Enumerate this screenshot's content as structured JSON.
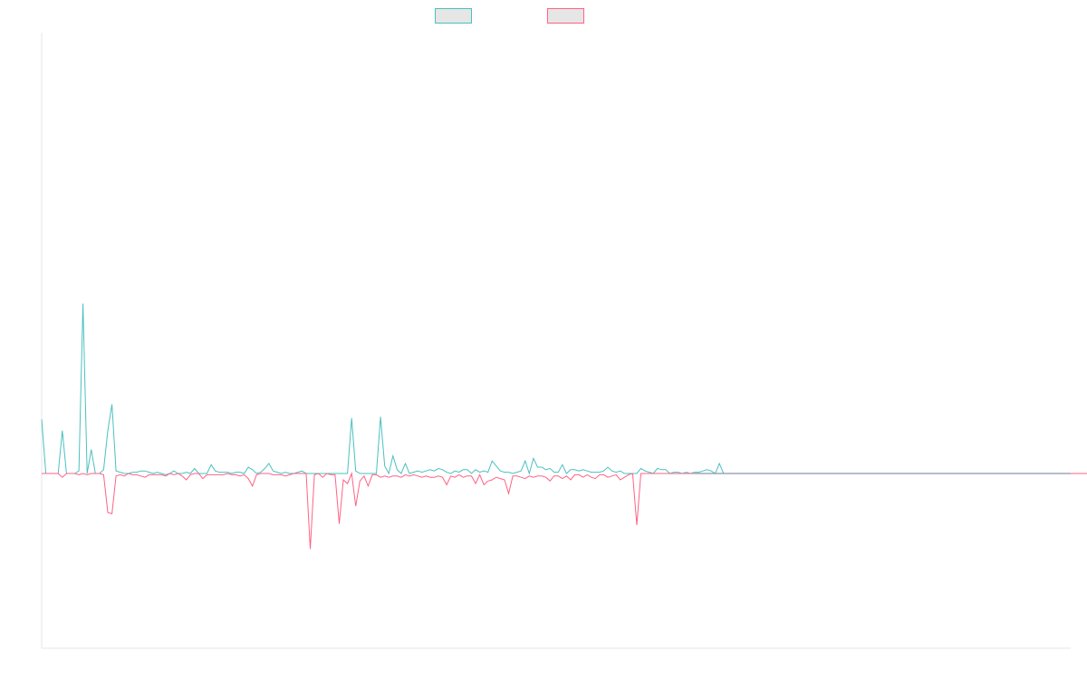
{
  "chart_data": {
    "type": "line",
    "title": "",
    "xlabel": "",
    "ylabel": "",
    "grid": false,
    "legend_position": "top-center",
    "ylim": [
      -1,
      1
    ],
    "x_count": 250,
    "series": [
      {
        "color": "#4bc0c0",
        "values": [
          0.43,
          0.0,
          0.0,
          0.0,
          0.0,
          0.34,
          0.0,
          0.0,
          0.0,
          0.02,
          1.35,
          0.0,
          0.19,
          0.0,
          0.0,
          0.03,
          0.34,
          0.55,
          0.02,
          0.01,
          0.0,
          0.0,
          0.01,
          0.01,
          0.02,
          0.02,
          0.01,
          0.0,
          0.01,
          0.0,
          -0.01,
          0.0,
          0.02,
          0.0,
          0.0,
          0.01,
          0.0,
          0.04,
          0.0,
          0.0,
          0.0,
          0.07,
          0.02,
          0.01,
          0.01,
          0.01,
          0.0,
          0.01,
          0.01,
          0.0,
          0.05,
          0.03,
          0.0,
          0.01,
          0.04,
          0.08,
          0.02,
          0.01,
          0.0,
          0.01,
          0.0,
          0.0,
          0.01,
          0.02,
          0.0,
          0.0,
          0.0,
          0.0,
          0.0,
          0.0,
          0.0,
          0.0,
          0.0,
          0.0,
          0.0,
          0.44,
          0.02,
          0.0,
          0.0,
          0.0,
          0.0,
          0.0,
          0.45,
          0.06,
          0.0,
          0.14,
          0.03,
          0.0,
          0.08,
          0.0,
          0.01,
          0.02,
          0.01,
          0.02,
          0.03,
          0.02,
          0.04,
          0.03,
          0.01,
          0.0,
          0.02,
          0.01,
          0.03,
          0.03,
          0.0,
          0.03,
          0.01,
          0.02,
          0.01,
          0.1,
          0.06,
          0.02,
          0.01,
          0.01,
          0.0,
          0.01,
          0.02,
          0.1,
          0.0,
          0.12,
          0.05,
          0.05,
          0.03,
          0.04,
          0.01,
          0.01,
          0.07,
          0.0,
          0.03,
          0.03,
          0.02,
          0.03,
          0.02,
          0.01,
          0.01,
          0.01,
          0.02,
          0.05,
          0.02,
          0.01,
          0.02,
          0.0,
          0.0,
          0.0,
          0.0,
          0.04,
          0.02,
          0.01,
          0.0,
          0.04,
          0.03,
          0.03,
          0.0,
          0.01,
          0.01,
          0.0,
          0.01,
          0.0,
          0.01,
          0.01,
          0.02,
          0.03,
          0.02,
          0.0,
          0.08,
          0.0,
          0.0,
          0.0,
          0.0,
          0.0,
          0.0,
          0.0,
          0.0,
          0.0,
          0.0,
          0.0,
          0.0,
          0.0,
          0.0,
          0.0,
          0.0,
          0.0,
          0.0,
          0.0,
          0.0,
          0.0,
          0.0,
          0.0,
          0.0,
          0.0,
          0.0,
          0.0,
          0.0,
          0.0,
          0.0,
          0.0,
          0.0,
          0.0,
          0.0,
          0.0,
          0.0,
          0.0,
          0.0,
          0.0,
          0.0,
          0.0,
          0.0,
          0.0,
          0.0,
          0.0,
          0.0,
          0.0,
          0.0,
          0.0,
          0.0,
          0.0,
          0.0,
          0.0,
          0.0,
          0.0,
          0.0,
          0.0,
          0.0,
          0.0,
          0.0,
          0.0,
          0.0,
          0.0,
          0.0,
          0.0,
          0.0,
          0.0,
          0.0,
          0.0,
          0.0,
          0.0,
          0.0,
          0.0,
          0.0,
          0.0,
          0.0,
          0.0,
          0.0,
          0.0,
          0.0,
          0.0,
          0.0,
          0.0,
          0.0,
          0.0,
          0.0,
          0.0,
          0.0,
          0.0,
          0.0
        ]
      },
      {
        "color": "#ff6384",
        "values": [
          0.0,
          0.0,
          0.0,
          0.0,
          0.0,
          -0.03,
          0.0,
          0.0,
          0.0,
          -0.01,
          0.0,
          -0.01,
          0.0,
          0.0,
          0.0,
          -0.01,
          -0.31,
          -0.32,
          -0.02,
          -0.01,
          -0.02,
          0.0,
          -0.01,
          -0.01,
          -0.02,
          -0.03,
          -0.01,
          -0.01,
          -0.01,
          -0.01,
          -0.02,
          0.0,
          -0.01,
          0.0,
          -0.02,
          -0.05,
          -0.01,
          0.0,
          0.0,
          -0.04,
          -0.01,
          -0.01,
          -0.01,
          -0.01,
          -0.01,
          0.0,
          -0.01,
          -0.01,
          -0.02,
          -0.01,
          -0.04,
          -0.1,
          -0.01,
          0.0,
          0.0,
          0.0,
          -0.01,
          -0.01,
          -0.01,
          -0.02,
          -0.01,
          0.0,
          0.0,
          0.0,
          0.0,
          -0.6,
          -0.01,
          0.0,
          -0.03,
          0.0,
          -0.01,
          -0.01,
          -0.4,
          -0.05,
          -0.08,
          0.0,
          -0.26,
          -0.06,
          -0.02,
          -0.1,
          -0.01,
          -0.01,
          -0.03,
          -0.02,
          -0.03,
          -0.02,
          -0.02,
          -0.03,
          -0.01,
          -0.02,
          -0.01,
          -0.02,
          -0.03,
          -0.02,
          -0.03,
          -0.03,
          -0.02,
          -0.03,
          -0.09,
          -0.02,
          -0.03,
          -0.01,
          -0.03,
          -0.02,
          -0.02,
          -0.08,
          -0.01,
          -0.09,
          -0.06,
          -0.05,
          -0.03,
          -0.04,
          -0.05,
          -0.16,
          -0.02,
          -0.02,
          -0.03,
          -0.04,
          -0.02,
          -0.03,
          -0.02,
          -0.02,
          -0.03,
          -0.06,
          -0.02,
          -0.02,
          -0.04,
          -0.02,
          -0.05,
          -0.01,
          -0.01,
          -0.03,
          -0.01,
          -0.03,
          -0.04,
          -0.01,
          -0.01,
          -0.03,
          -0.02,
          -0.01,
          -0.05,
          -0.03,
          -0.01,
          0.0,
          -0.41,
          0.0,
          0.0,
          0.0,
          0.0,
          0.0,
          0.0,
          0.0,
          0.0,
          0.0,
          0.0,
          0.0,
          0.0,
          0.0,
          0.0,
          0.0,
          0.0,
          0.0,
          0.0,
          0.0,
          0.0,
          0.0,
          0.0,
          0.0,
          0.0,
          0.0,
          0.0,
          0.0,
          0.0,
          0.0,
          0.0,
          0.0,
          0.0,
          0.0,
          0.0,
          0.0,
          0.0,
          0.0,
          0.0,
          0.0,
          0.0,
          0.0,
          0.0,
          0.0,
          0.0,
          0.0,
          0.0,
          0.0,
          0.0,
          0.0,
          0.0,
          0.0,
          0.0,
          0.0,
          0.0,
          0.0,
          0.0,
          0.0,
          0.0,
          0.0,
          0.0,
          0.0,
          0.0,
          0.0,
          0.0,
          0.0,
          0.0,
          0.0,
          0.0,
          0.0,
          0.0,
          0.0,
          0.0,
          0.0,
          0.0,
          0.0,
          0.0,
          0.0,
          0.0,
          0.0,
          0.0,
          0.0,
          0.0,
          0.0,
          0.0,
          0.0,
          0.0,
          0.0,
          0.0,
          0.0,
          0.0,
          0.0,
          0.0,
          0.0,
          0.0,
          0.0,
          0.0,
          0.0,
          0.0,
          0.0,
          0.0,
          0.0,
          0.0,
          0.0,
          0.0,
          0.0,
          0.0,
          0.0,
          0.0,
          0.0
        ]
      }
    ]
  }
}
